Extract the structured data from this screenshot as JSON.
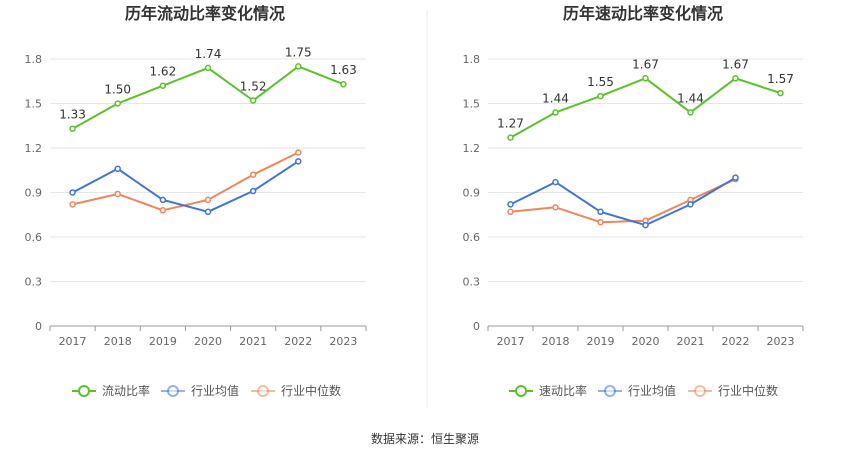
{
  "source": "数据来源：恒生聚源",
  "chart_data": [
    {
      "type": "line",
      "title": "历年流动比率变化情况",
      "categories": [
        "2017",
        "2018",
        "2019",
        "2020",
        "2021",
        "2022",
        "2023"
      ],
      "ylim": [
        0,
        1.8
      ],
      "yticks": [
        "0",
        "0.3",
        "0.6",
        "0.9",
        "1.2",
        "1.5",
        "1.8"
      ],
      "legend_position": "bottom",
      "series": [
        {
          "name": "流动比率",
          "color": "#5ac12a",
          "values": [
            1.33,
            1.5,
            1.62,
            1.74,
            1.52,
            1.75,
            1.63
          ],
          "labels": [
            "1.33",
            "1.50",
            "1.62",
            "1.74",
            "1.52",
            "1.75",
            "1.63"
          ]
        },
        {
          "name": "行业均值",
          "color": "#3f74d8",
          "values": [
            0.9,
            1.06,
            0.85,
            0.77,
            0.91,
            1.11,
            null
          ]
        },
        {
          "name": "行业中位数",
          "color": "#f0855a",
          "values": [
            0.82,
            0.89,
            0.78,
            0.85,
            1.02,
            1.17,
            null
          ]
        }
      ]
    },
    {
      "type": "line",
      "title": "历年速动比率变化情况",
      "categories": [
        "2017",
        "2018",
        "2019",
        "2020",
        "2021",
        "2022",
        "2023"
      ],
      "ylim": [
        0,
        1.8
      ],
      "yticks": [
        "0",
        "0.3",
        "0.6",
        "0.9",
        "1.2",
        "1.5",
        "1.8"
      ],
      "legend_position": "bottom",
      "series": [
        {
          "name": "速动比率",
          "color": "#5ac12a",
          "values": [
            1.27,
            1.44,
            1.55,
            1.67,
            1.44,
            1.67,
            1.57
          ],
          "labels": [
            "1.27",
            "1.44",
            "1.55",
            "1.67",
            "1.44",
            "1.67",
            "1.57"
          ]
        },
        {
          "name": "行业均值",
          "color": "#3f74d8",
          "values": [
            0.82,
            0.97,
            0.77,
            0.68,
            0.82,
            1.0,
            null
          ]
        },
        {
          "name": "行业中位数",
          "color": "#f0855a",
          "values": [
            0.77,
            0.8,
            0.7,
            0.71,
            0.85,
            0.99,
            null
          ]
        }
      ]
    }
  ]
}
